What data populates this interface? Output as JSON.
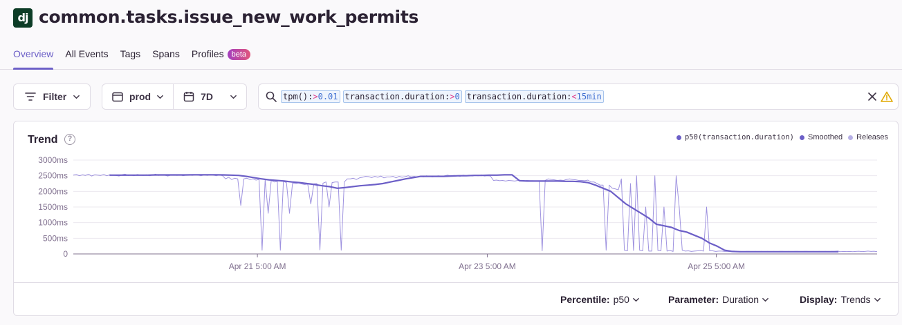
{
  "header": {
    "logo_text": "dj",
    "title": "common.tasks.issue_new_work_permits"
  },
  "tabs": [
    {
      "label": "Overview",
      "active": true
    },
    {
      "label": "All Events",
      "active": false
    },
    {
      "label": "Tags",
      "active": false
    },
    {
      "label": "Spans",
      "active": false
    },
    {
      "label": "Profiles",
      "active": false,
      "badge": "beta"
    }
  ],
  "toolbar": {
    "filter_label": "Filter",
    "environment": "prod",
    "date_range": "7D"
  },
  "search": {
    "tokens": [
      {
        "key": "tpm():",
        "op": ">",
        "value": "0.01"
      },
      {
        "key": "transaction.duration:",
        "op": ">",
        "value": "0"
      },
      {
        "key": "transaction.duration:",
        "op": "<",
        "value": "15min"
      }
    ]
  },
  "colors": {
    "accent": "#6c5fc7",
    "series_raw": "#8d7fd9",
    "smoothed": "#6c5fc7",
    "releases": "#b7b0e6"
  },
  "panel": {
    "title": "Trend",
    "help_icon": "question-circle-icon",
    "legend": [
      {
        "label": "p50(transaction.duration)",
        "color": "#6c5fc7"
      },
      {
        "label": "Smoothed",
        "color": "#6c5fc7"
      },
      {
        "label": "Releases",
        "color": "#b7b0e6"
      }
    ]
  },
  "chart_data": {
    "type": "line",
    "y_unit": "ms",
    "ylim": [
      0,
      3000
    ],
    "y_ticks": [
      "3000ms",
      "2500ms",
      "2000ms",
      "1500ms",
      "1000ms",
      "500ms",
      "0"
    ],
    "x_ticks": [
      "Apr 21 5:00 AM",
      "Apr 23 5:00 AM",
      "Apr 25 5:00 AM"
    ],
    "grid": true,
    "legend_position": "top-right",
    "series": [
      {
        "name": "p50(transaction.duration)",
        "values": [
          2520,
          2540,
          2500,
          2530,
          2510,
          2550,
          2490,
          2530,
          2520,
          2510,
          2540,
          2500,
          2530,
          2520,
          2510,
          2490,
          2530,
          2550,
          2510,
          2520,
          2500,
          2540,
          2520,
          2510,
          2530,
          2500,
          2520,
          2550,
          2510,
          2530,
          2520,
          2490,
          2520,
          2540,
          2510,
          2530,
          2500,
          2520,
          2540,
          2510,
          2530,
          2520,
          2500,
          2530,
          2510,
          2540,
          2520,
          2500,
          2530,
          2500,
          2400,
          2450,
          2380,
          2420,
          2400,
          1550,
          2400,
          2420,
          2380,
          2400,
          2360,
          2380,
          120,
          2380,
          1300,
          2350,
          2300,
          2320,
          120,
          2320,
          2280,
          1300,
          2260,
          2250,
          2270,
          2240,
          2220,
          2230,
          1600,
          2240,
          2250,
          130,
          2260,
          2300,
          1500,
          2280,
          2300,
          2300,
          120,
          2300,
          2400,
          2400,
          2420,
          2380,
          2430,
          2450,
          2480,
          2470,
          2440,
          2480,
          2450,
          2490,
          2430,
          2460,
          2460,
          2480,
          2430,
          2480,
          2450,
          2470,
          2500,
          2460,
          2480,
          2450,
          2490,
          2460,
          2500,
          2480,
          2460,
          2490,
          2500,
          2480,
          2500,
          2520,
          2490,
          2510,
          2500,
          2480,
          2520,
          2500,
          2520,
          2490,
          2510,
          2500,
          2530,
          2490,
          2500,
          2490,
          2350,
          2360,
          2340,
          2350,
          2330,
          2350,
          2340,
          2330,
          2350,
          2340,
          2330,
          2350,
          2340,
          2340,
          2330,
          2330,
          100,
          2350,
          2400,
          2380,
          2370,
          2350,
          2360,
          2350,
          2380,
          2400,
          2380,
          2370,
          2350,
          2350,
          2340,
          2360,
          2300,
          2300,
          2250,
          2200,
          2200,
          120,
          2200,
          2100,
          2080,
          2050,
          2400,
          120,
          100,
          2250,
          110,
          2500,
          120,
          100,
          1500,
          90,
          90,
          2500,
          110,
          100,
          1500,
          90,
          110,
          80,
          2500,
          1500,
          120,
          90,
          100,
          80,
          90,
          100,
          110,
          90,
          1500,
          100,
          100,
          80,
          90,
          90,
          80,
          80,
          70,
          90,
          80,
          80,
          70,
          80,
          80,
          70,
          80,
          70,
          80,
          70,
          80,
          70,
          80,
          70,
          80,
          80,
          70,
          80,
          70,
          80,
          80,
          70,
          80,
          80,
          70,
          80,
          70,
          80,
          70,
          80,
          70,
          80,
          80,
          90,
          70,
          80,
          75,
          80,
          70,
          80,
          85,
          75,
          80,
          90,
          80,
          85,
          70
        ]
      },
      {
        "name": "Smoothed",
        "values": [
          2520,
          2520,
          2520,
          2520,
          2520,
          2520,
          2525,
          2525,
          2525,
          2525,
          2525,
          2530,
          2530,
          2530,
          2530,
          2525,
          2520,
          2510,
          2480,
          2440,
          2400,
          2370,
          2350,
          2330,
          2300,
          2280,
          2250,
          2220,
          2180,
          2150,
          2100,
          2120,
          2150,
          2180,
          2200,
          2220,
          2250,
          2300,
          2350,
          2400,
          2440,
          2480,
          2480,
          2480,
          2480,
          2490,
          2500,
          2500,
          2510,
          2510,
          2520,
          2520,
          2530,
          2530,
          2340,
          2330,
          2330,
          2330,
          2330,
          2330,
          2320,
          2320,
          2310,
          2280,
          2200,
          2100,
          2000,
          1800,
          1600,
          1450,
          1300,
          1150,
          950,
          900,
          850,
          750,
          700,
          600,
          500,
          350,
          250,
          120,
          80,
          70,
          70,
          70,
          70,
          70,
          70,
          70,
          70,
          70,
          70,
          70,
          70,
          70,
          70
        ]
      }
    ]
  },
  "footer": {
    "percentile_label": "Percentile:",
    "percentile_value": "p50",
    "parameter_label": "Parameter:",
    "parameter_value": "Duration",
    "display_label": "Display:",
    "display_value": "Trends"
  }
}
